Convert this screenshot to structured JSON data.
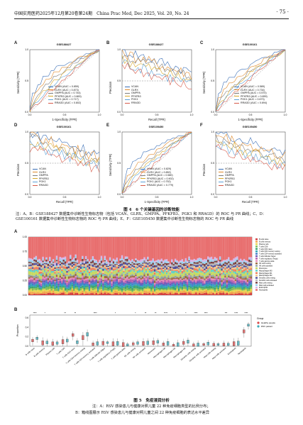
{
  "header": {
    "journal": "中国实用医药2025年12月第20卷第24期　China Prac Med, Dec 2025, Vol. 20, No. 24",
    "page": "· 75 ·"
  },
  "figure4": {
    "caption_title": "图 4　6 个关键基因的诊断效能",
    "caption_note": "注：A、B：GSE188427 数据集中诊断性生物标志物（包括 VCAN、GLRX、GMPPA、PFKFB3、PGK1 和 RRAGD）的 ROC 与 PR 曲线；C、D：GSE100161 数据集中诊断性生物标志物的 ROC 与 PR 曲线；E、F：GSE105450 数据集中诊断性生物标志物的 ROC 与 PR 曲线",
    "roc_x": "1-Specificity (FPR)",
    "roc_y": "Sensitivity (TPR)",
    "pr_x": "Recall (TPR)",
    "pr_y": "Precision",
    "panels": [
      {
        "letter": "A",
        "title": "GSE188427",
        "legend": [
          "VCAN (AUC = 0.859)",
          "GLRX (AUC = 0.873)",
          "GMPPA (AUC = 0.744)",
          "PFKFB3 (AUC = 0.863)",
          "PGK1 (AUC = 0.717)",
          "RRAGD (AUC = 0.802)"
        ]
      },
      {
        "letter": "B",
        "title": "GSE188427",
        "legend": [
          "VCAN",
          "GLRX",
          "GMPPA",
          "PFKFB3",
          "PGK1",
          "RRAGD"
        ]
      },
      {
        "letter": "C",
        "title": "GSE100161",
        "legend": [
          "VCAN (AUC = 0.589)",
          "GLRX (AUC = 0.734)",
          "GMPPA (AUC = 0.570)",
          "PFKFB3 (AUC = 0.659)",
          "PGK1 (AUC = 0.673)",
          "RRAGD (AUC = 0.694)"
        ]
      },
      {
        "letter": "D",
        "title": "GSE100161",
        "legend": [
          "VCAN",
          "GLRX",
          "GMPPA",
          "PFKFB3",
          "PGK1",
          "RRAGD"
        ]
      },
      {
        "letter": "E",
        "title": "GSE105450",
        "legend": [
          "VCAN (AUC = 0.829)",
          "GLRX (AUC = 0.852)",
          "GMPPA (AUC = 0.580)",
          "PFKFB3 (AUC = 0.902)",
          "PGK1 (AUC = 0.752)",
          "RRAGD (AUC = 0.779)"
        ]
      },
      {
        "letter": "F",
        "title": "GSE105450",
        "legend": [
          "VCAN",
          "GLRX",
          "GMPPA",
          "PFKFB3",
          "PGK1",
          "RRAGD"
        ]
      }
    ],
    "colors": [
      "#3b6fb6",
      "#e08a2c",
      "#7c7c7c",
      "#d7a82a",
      "#5aa0d8",
      "#d65a4a"
    ]
  },
  "figure5": {
    "caption_title": "图 5　免疫浸润分析",
    "caption_note_a": "注：A：RSV 感染患儿与健康对照儿童 22 种免疫细胞类型的比例分布；",
    "caption_note_b": "B：箱线图展示 RSV 感染患儿与健康对照儿童之间 22 种免疫细胞的表达水平差异",
    "panel_a": "A",
    "panel_b": "B",
    "y_label_b": "Proportion",
    "legend_title": "Group",
    "groups": [
      "Healthy people",
      "RSV patient"
    ],
    "group_colors": [
      "#d94b4b",
      "#3aa9b8"
    ],
    "y_ticks_a": [
      "1.00",
      "0.75",
      "0.50",
      "0.25",
      "0.00"
    ],
    "y_ticks_b": [
      "0.6",
      "0.4",
      "0.2",
      "0.0"
    ],
    "cells": [
      "B cells naive",
      "B cells memory",
      "Plasma cells",
      "T cells CD8",
      "T cells CD4 naive",
      "T cells CD4 memory resting",
      "T cells CD4 memory activated",
      "T cells follicular helper",
      "T cells regulatory (Tregs)",
      "T cells gamma delta",
      "NK cells resting",
      "NK cells activated",
      "Monocytes",
      "Macrophages M0",
      "Macrophages M1",
      "Macrophages M2",
      "Dendritic cells resting",
      "Dendritic cells activated",
      "Mast cells resting",
      "Mast cells activated",
      "Eosinophils",
      "Neutrophils"
    ],
    "signif": [
      "****",
      "*",
      "",
      "**",
      "**",
      "",
      "****",
      "",
      "*",
      "",
      "*",
      "**",
      "**",
      "****",
      "*",
      "*",
      "****",
      "****",
      "",
      "***",
      "****",
      "****"
    ]
  }
}
